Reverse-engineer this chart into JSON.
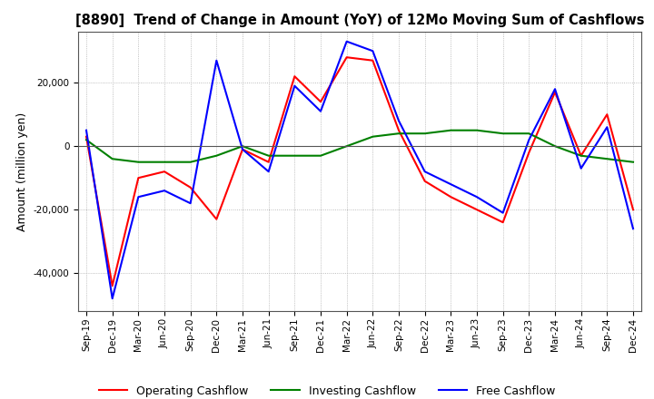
{
  "title": "[8890]  Trend of Change in Amount (YoY) of 12Mo Moving Sum of Cashflows",
  "ylabel": "Amount (million yen)",
  "ylim": [
    -52000,
    36000
  ],
  "yticks": [
    -40000,
    -20000,
    0,
    20000
  ],
  "background_color": "#ffffff",
  "grid_color": "#aaaaaa",
  "legend": [
    "Operating Cashflow",
    "Investing Cashflow",
    "Free Cashflow"
  ],
  "legend_colors": [
    "#ff0000",
    "#008000",
    "#0000ff"
  ],
  "x_labels": [
    "Sep-19",
    "Dec-19",
    "Mar-20",
    "Jun-20",
    "Sep-20",
    "Dec-20",
    "Mar-21",
    "Jun-21",
    "Sep-21",
    "Dec-21",
    "Mar-22",
    "Jun-22",
    "Sep-22",
    "Dec-22",
    "Mar-23",
    "Jun-23",
    "Sep-23",
    "Dec-23",
    "Mar-24",
    "Jun-24",
    "Sep-24",
    "Dec-24"
  ],
  "operating": [
    3000,
    -44000,
    -10000,
    -8000,
    -13000,
    -23000,
    -1000,
    -5000,
    22000,
    14000,
    28000,
    27000,
    5000,
    -11000,
    -16000,
    -20000,
    -24000,
    -2000,
    17000,
    -3000,
    10000,
    -20000
  ],
  "investing": [
    2000,
    -4000,
    -5000,
    -5000,
    -5000,
    -3000,
    0,
    -3000,
    -3000,
    -3000,
    0,
    3000,
    4000,
    4000,
    5000,
    5000,
    4000,
    4000,
    0,
    -3000,
    -4000,
    -5000
  ],
  "free": [
    5000,
    -48000,
    -16000,
    -14000,
    -18000,
    27000,
    -1000,
    -8000,
    19000,
    11000,
    33000,
    30000,
    8000,
    -8000,
    -12000,
    -16000,
    -21000,
    2000,
    18000,
    -7000,
    6000,
    -26000
  ]
}
